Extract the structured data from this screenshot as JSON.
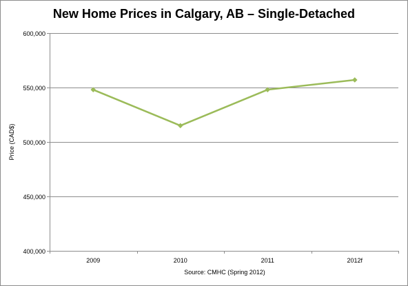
{
  "chart_data": {
    "type": "line",
    "title": "New Home Prices in Calgary, AB – Single-Detached",
    "ylabel": "Price (CAD$)",
    "xlabel": "Source: CMHC (Spring 2012)",
    "categories": [
      "2009",
      "2010",
      "2011",
      "2012f"
    ],
    "series": [
      {
        "values": [
          548000,
          515000,
          548000,
          557000
        ]
      }
    ],
    "ylim": [
      400000,
      600000
    ],
    "yticks": [
      400000,
      450000,
      500000,
      550000,
      600000
    ],
    "ytick_labels": [
      "400,000",
      "450,000",
      "500,000",
      "550,000",
      "600,000"
    ],
    "grid": "horizontal",
    "legend": "none",
    "colors": {
      "line": "#9bbb59",
      "grid": "#8c8c8c",
      "axis": "#8c8c8c",
      "text": "#000000"
    }
  }
}
